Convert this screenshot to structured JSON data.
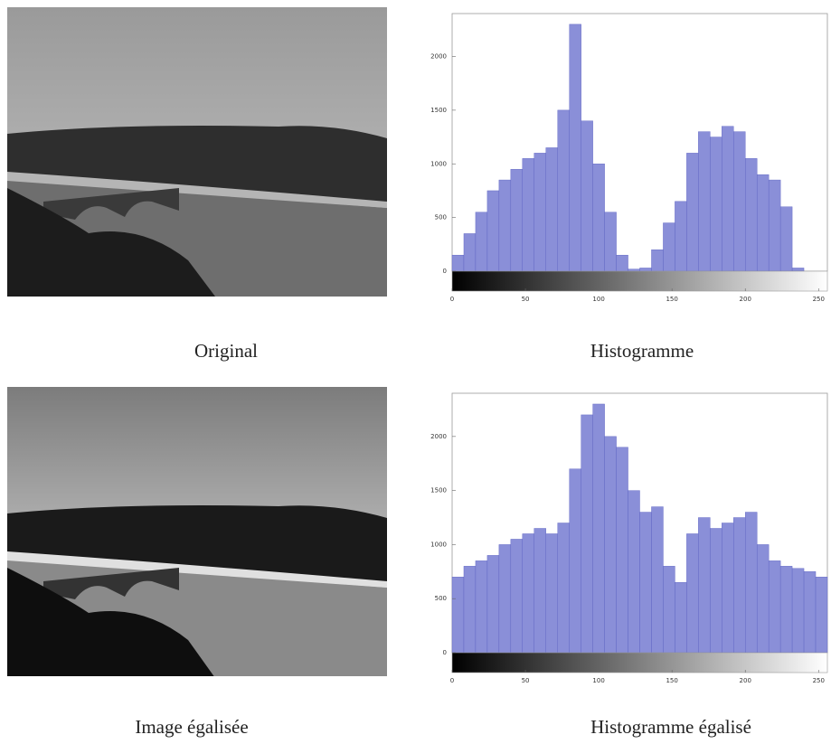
{
  "captions": [
    "Original",
    "Histogramme",
    "Image égalisée",
    "Histogramme égalisé"
  ],
  "chart_data": [
    {
      "type": "histogram",
      "color": "#8a8fd8",
      "bins": [
        0,
        8,
        16,
        24,
        32,
        40,
        48,
        56,
        64,
        72,
        80,
        88,
        96,
        104,
        112,
        120,
        128,
        136,
        144,
        152,
        160,
        168,
        176,
        184,
        192,
        200,
        208,
        216,
        224,
        232,
        240,
        248,
        256
      ],
      "counts": [
        150,
        350,
        550,
        750,
        850,
        950,
        1050,
        1100,
        1150,
        1500,
        2300,
        1400,
        1000,
        550,
        150,
        20,
        30,
        200,
        450,
        650,
        1100,
        1300,
        1250,
        1350,
        1300,
        1050,
        900,
        850,
        600,
        30,
        0,
        0
      ],
      "xlim": [
        0,
        256
      ],
      "xticks": [
        0,
        50,
        100,
        150,
        200,
        250
      ],
      "ylim": [
        0,
        2400
      ],
      "yticks": [
        0,
        500,
        1000,
        1500,
        2000
      ]
    },
    {
      "type": "histogram",
      "color": "#8a8fd8",
      "bins": [
        0,
        8,
        16,
        24,
        32,
        40,
        48,
        56,
        64,
        72,
        80,
        88,
        96,
        104,
        112,
        120,
        128,
        136,
        144,
        152,
        160,
        168,
        176,
        184,
        192,
        200,
        208,
        216,
        224,
        232,
        240,
        248,
        256
      ],
      "counts": [
        700,
        800,
        850,
        900,
        1000,
        1050,
        1100,
        1150,
        1100,
        1200,
        1700,
        2200,
        2300,
        2000,
        1900,
        1500,
        1300,
        1350,
        800,
        650,
        1100,
        1250,
        1150,
        1200,
        1250,
        1300,
        1000,
        850,
        800,
        780,
        750,
        700
      ],
      "xlim": [
        0,
        256
      ],
      "xticks": [
        0,
        50,
        100,
        150,
        200,
        250
      ],
      "ylim": [
        0,
        2400
      ],
      "yticks": [
        0,
        500,
        1000,
        1500,
        2000
      ]
    }
  ]
}
